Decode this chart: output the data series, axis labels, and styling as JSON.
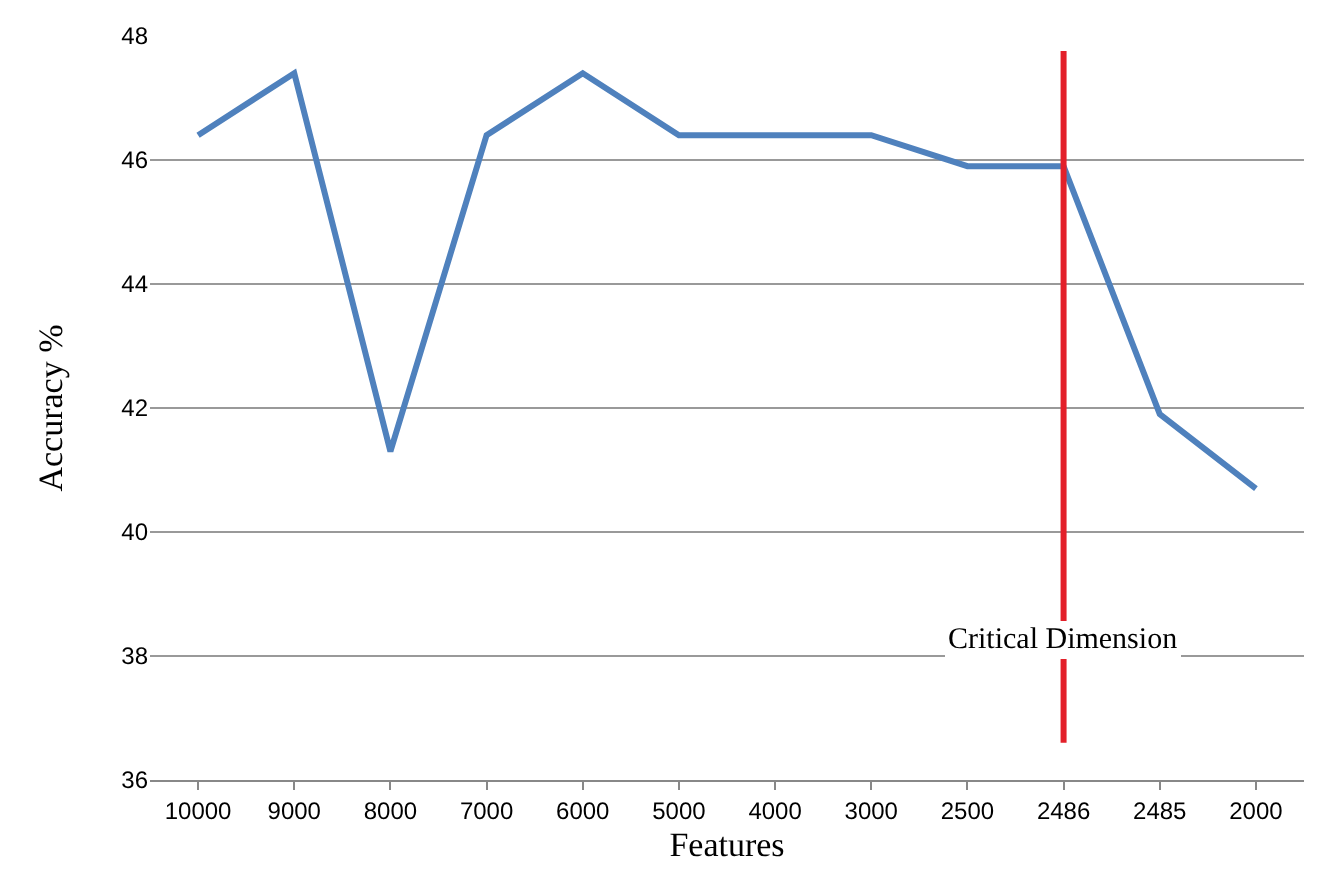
{
  "chart_data": {
    "type": "line",
    "xlabel": "Features",
    "ylabel": "Accuracy %",
    "categories": [
      "10000",
      "9000",
      "8000",
      "7000",
      "6000",
      "5000",
      "4000",
      "3000",
      "2500",
      "2486",
      "2485",
      "2000"
    ],
    "series": [
      {
        "color": "#4f81bd",
        "values": [
          46.4,
          47.4,
          41.3,
          46.4,
          47.4,
          46.4,
          46.4,
          46.4,
          45.9,
          45.9,
          41.9,
          40.7
        ]
      }
    ],
    "ylim": [
      36,
      48
    ],
    "yticks": [
      36,
      38,
      40,
      42,
      44,
      46,
      48
    ],
    "grid": "y",
    "marker": "none",
    "line_style": "solid",
    "ref_lines": [
      {
        "axis": "x",
        "value": "2486",
        "label": "Critical Dimension",
        "color": "#e3202a"
      }
    ]
  }
}
